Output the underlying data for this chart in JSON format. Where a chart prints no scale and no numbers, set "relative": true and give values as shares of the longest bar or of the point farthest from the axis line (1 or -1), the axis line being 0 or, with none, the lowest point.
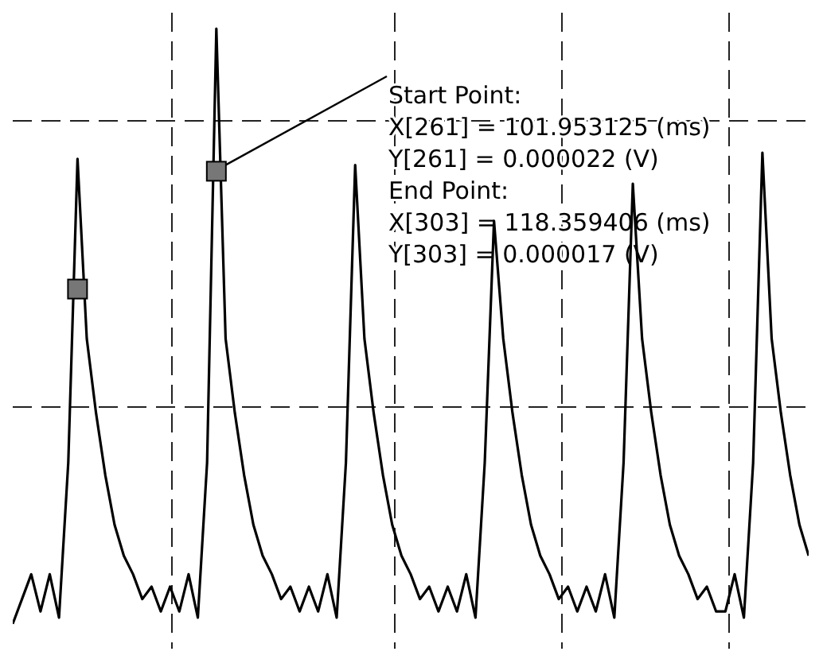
{
  "chart_data": {
    "type": "line",
    "relative": true,
    "grid": true,
    "line_style": "solid",
    "categories": [
      null,
      null,
      null,
      null,
      null,
      null,
      null,
      null,
      null,
      null,
      null,
      null,
      null,
      null,
      null,
      null,
      null,
      null,
      null,
      null,
      null,
      null,
      null,
      null,
      null,
      null,
      null,
      null,
      null,
      null,
      null,
      null,
      null,
      null,
      null,
      null,
      null,
      null,
      null,
      null,
      null,
      null,
      null,
      null,
      null,
      null,
      null,
      null,
      null,
      null,
      null,
      null,
      null,
      null,
      null,
      null,
      null,
      null,
      null,
      null,
      null,
      null,
      null,
      null,
      null,
      null,
      null,
      null,
      null,
      null,
      null,
      null,
      null,
      null,
      null,
      null,
      null,
      null,
      null,
      null,
      null,
      null,
      null,
      null,
      null,
      null,
      null
    ],
    "series": [
      {
        "color": "#000000",
        "values": [
          0.04,
          0.08,
          0.12,
          0.06,
          0.12,
          0.05,
          0.3,
          0.79,
          0.5,
          0.38,
          0.28,
          0.2,
          0.15,
          0.12,
          0.08,
          0.1,
          0.06,
          0.1,
          0.06,
          0.12,
          0.05,
          0.3,
          1,
          0.5,
          0.38,
          0.28,
          0.2,
          0.15,
          0.12,
          0.08,
          0.1,
          0.06,
          0.1,
          0.06,
          0.12,
          0.05,
          0.3,
          0.78,
          0.5,
          0.38,
          0.28,
          0.2,
          0.15,
          0.12,
          0.08,
          0.1,
          0.06,
          0.1,
          0.06,
          0.12,
          0.05,
          0.3,
          0.69,
          0.5,
          0.38,
          0.28,
          0.2,
          0.15,
          0.12,
          0.08,
          0.1,
          0.06,
          0.1,
          0.06,
          0.12,
          0.05,
          0.3,
          0.75,
          0.5,
          0.38,
          0.28,
          0.2,
          0.15,
          0.12,
          0.08,
          0.1,
          0.06,
          0.06,
          0.12,
          0.05,
          0.3,
          0.8,
          0.5,
          0.38,
          0.28,
          0.2,
          0.15
        ]
      }
    ],
    "annotations": [
      "Start Point:",
      "X[261] = 101.953125 (ms)",
      "Y[261] = 0.000022 (V)",
      "End Point:",
      "X[303] = 118.359406 (ms)",
      "Y[303] = 0.000017 (V)"
    ]
  }
}
